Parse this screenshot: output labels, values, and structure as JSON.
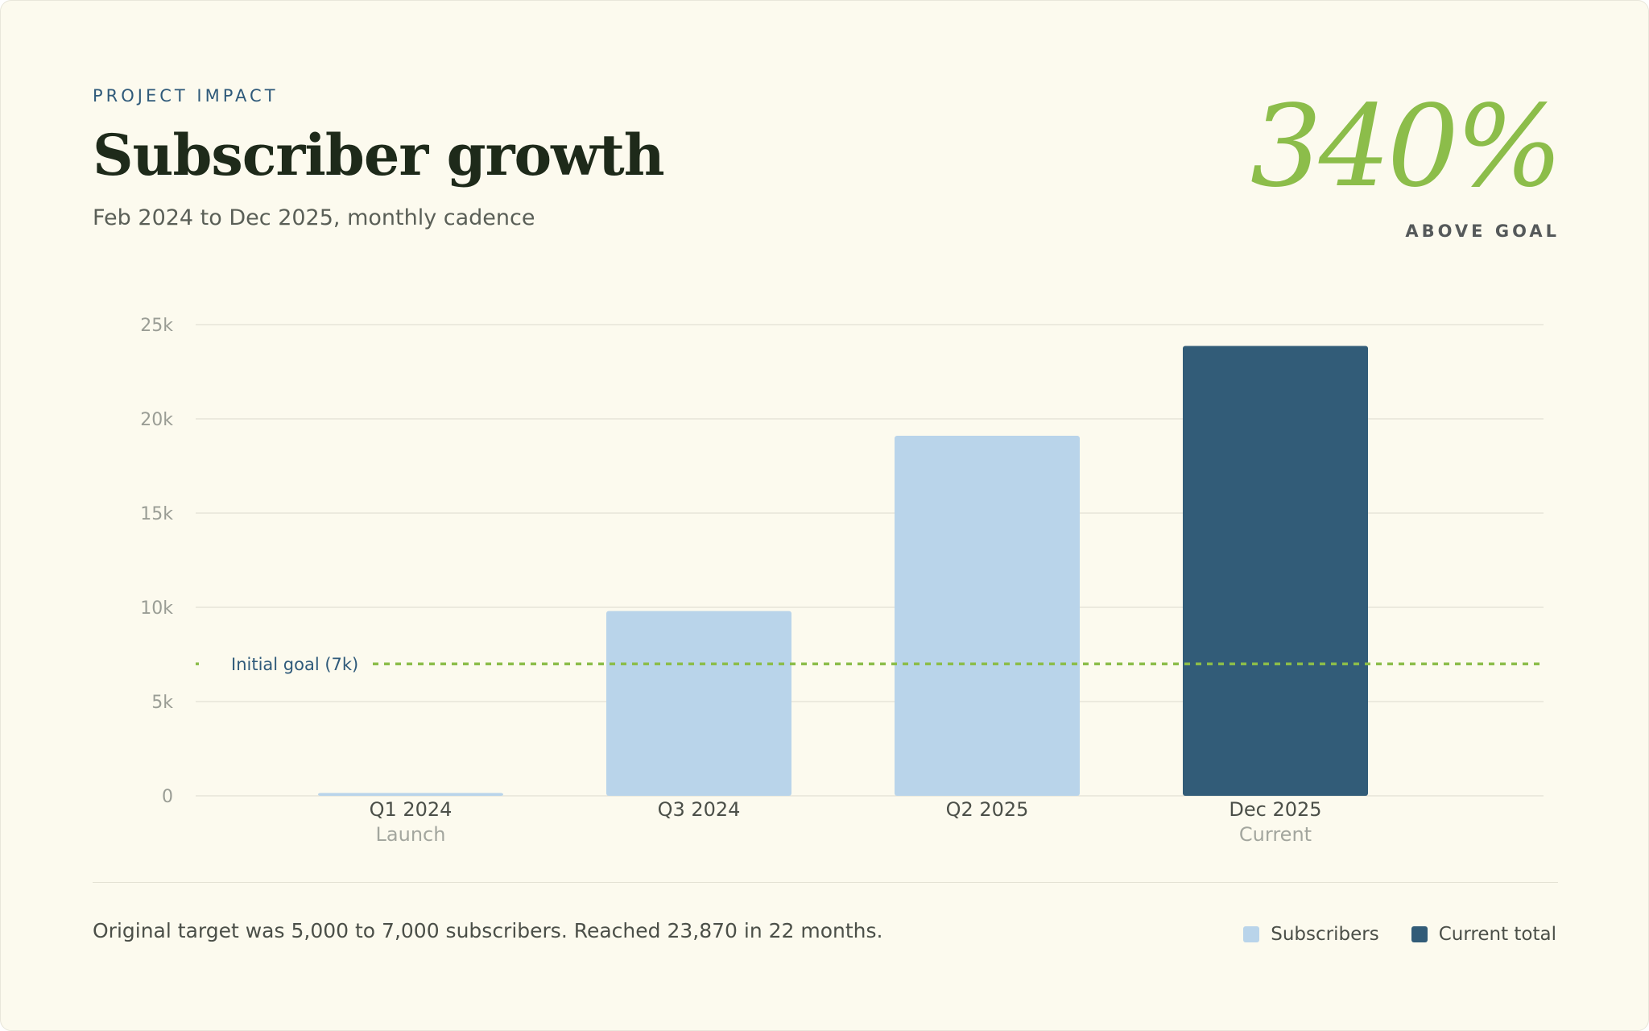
{
  "header": {
    "eyebrow": "PROJECT IMPACT",
    "title": "Subscriber growth",
    "subtitle": "Feb 2024 to Dec 2025, monthly cadence"
  },
  "kpi": {
    "value": "340%",
    "label": "ABOVE GOAL",
    "color": "#8cbd4a"
  },
  "chart_data": {
    "type": "bar",
    "categories": [
      "Q1 2024",
      "Q3 2024",
      "Q2 2025",
      "Dec 2025"
    ],
    "sublabels": [
      "Launch",
      "",
      "",
      "Current"
    ],
    "values": [
      150,
      9800,
      19100,
      23870
    ],
    "colors": [
      "#b9d4ea",
      "#b9d4ea",
      "#b9d4ea",
      "#325c78"
    ],
    "ylim": [
      0,
      25000
    ],
    "yticks": [
      0,
      5000,
      10000,
      15000,
      20000,
      25000
    ],
    "ytick_labels": [
      "0",
      "5k",
      "10k",
      "15k",
      "20k",
      "25k"
    ],
    "grid": true,
    "reference_line": {
      "value": 7000,
      "label": "Initial goal (7k)",
      "color": "#8cbd4a"
    },
    "legend": [
      {
        "name": "Subscribers",
        "color": "#b9d4ea"
      },
      {
        "name": "Current total",
        "color": "#325c78"
      }
    ],
    "legend_position": "bottom-right"
  },
  "footer": {
    "note": "Original target was 5,000 to 7,000 subscribers. Reached 23,870 in 22 months."
  }
}
